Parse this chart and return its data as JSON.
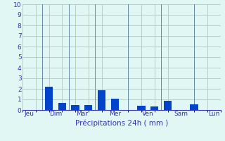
{
  "bar_heights": [
    0,
    2.2,
    0.7,
    0.5,
    0.45,
    1.85,
    1.05,
    0,
    0.4,
    0.35,
    0.9,
    0,
    0.55,
    0,
    0
  ],
  "bar_color": "#0044cc",
  "background_color": "#e0f7f4",
  "grid_color": "#b0c8c0",
  "tick_color": "#3333bb",
  "label_color": "#3333bb",
  "ylim": [
    0,
    10
  ],
  "yticks": [
    0,
    1,
    2,
    3,
    4,
    5,
    6,
    7,
    8,
    9,
    10
  ],
  "day_labels": [
    "Jeu",
    "Dim",
    "Mar",
    "Mer",
    "Ven",
    "Sam",
    "Lun"
  ],
  "xlabel": "Précipitations 24h ( mm )",
  "bar_width": 0.6,
  "xlim": [
    0,
    15
  ],
  "day_x_positions": [
    0.5,
    2.5,
    4.5,
    7.0,
    9.5,
    12.0,
    14.5
  ],
  "separator_x": [
    1.5,
    3.5,
    5.5,
    8.0,
    10.5,
    13.0
  ],
  "bar_x": [
    1,
    2,
    3,
    4,
    5,
    6,
    7,
    8,
    9,
    10,
    11,
    12,
    13,
    14,
    15
  ]
}
